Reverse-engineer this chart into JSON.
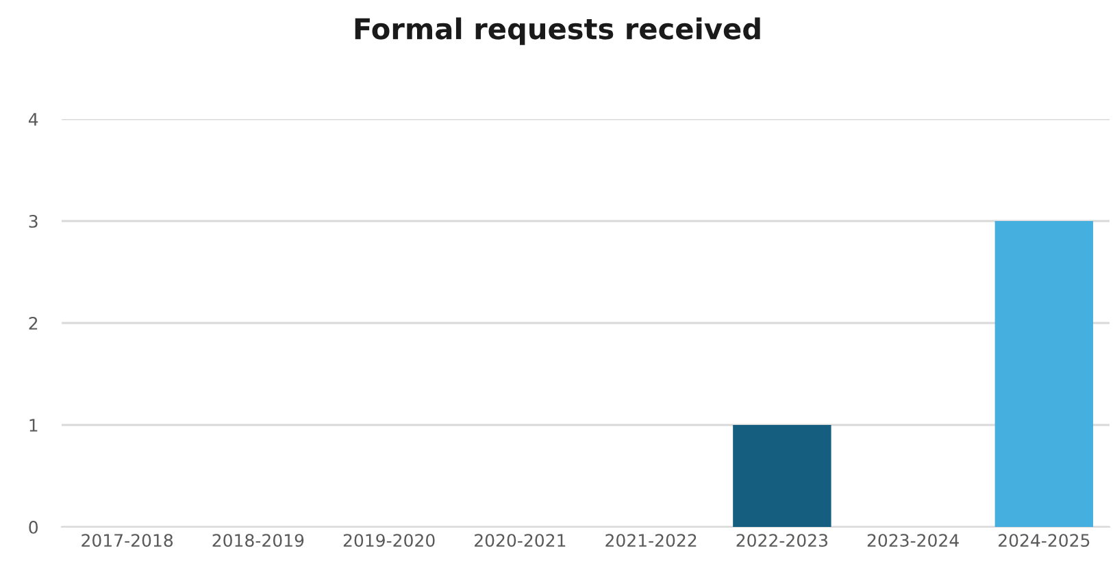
{
  "chart_data": {
    "type": "bar",
    "title": "Formal requests received",
    "categories": [
      "2017-2018",
      "2018-2019",
      "2019-2020",
      "2020-2021",
      "2021-2022",
      "2022-2023",
      "2023-2024",
      "2024-2025"
    ],
    "values": [
      0,
      0,
      0,
      0,
      0,
      1,
      0,
      3
    ],
    "colors": [
      "#45b0e0",
      "#45b0e0",
      "#45b0e0",
      "#45b0e0",
      "#45b0e0",
      "#165e80",
      "#45b0e0",
      "#45b0e0"
    ],
    "ylim": [
      0,
      4
    ],
    "yticks": [
      0,
      1,
      2,
      3,
      4
    ],
    "grid": "y"
  }
}
